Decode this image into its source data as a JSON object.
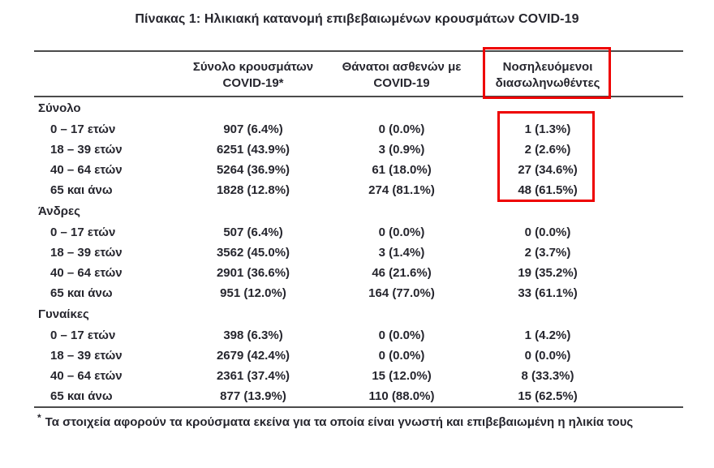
{
  "title": "Πίνακας 1: Ηλικιακή κατανομή επιβεβαιωμένων κρουσμάτων COVID-19",
  "table": {
    "headers": [
      {
        "line1": "Σύνολο κρουσμάτων",
        "line2": "COVID-19*"
      },
      {
        "line1": "Θάνατοι ασθενών με",
        "line2": "COVID-19"
      },
      {
        "line1": "Νοσηλευόμενοι",
        "line2": "διασωληνωθέντες"
      }
    ],
    "sections": [
      {
        "label": "Σύνολο",
        "rows": [
          {
            "age": "0 – 17 ετών",
            "cases": "907 (6.4%)",
            "deaths": "0 (0.0%)",
            "intubated": "1 (1.3%)"
          },
          {
            "age": "18 – 39 ετών",
            "cases": "6251 (43.9%)",
            "deaths": "3 (0.9%)",
            "intubated": "2 (2.6%)"
          },
          {
            "age": "40 – 64 ετών",
            "cases": "5264 (36.9%)",
            "deaths": "61 (18.0%)",
            "intubated": "27 (34.6%)"
          },
          {
            "age": "65 και άνω",
            "cases": "1828 (12.8%)",
            "deaths": "274 (81.1%)",
            "intubated": "48 (61.5%)"
          }
        ]
      },
      {
        "label": "Άνδρες",
        "rows": [
          {
            "age": "0 – 17 ετών",
            "cases": "507 (6.4%)",
            "deaths": "0 (0.0%)",
            "intubated": "0 (0.0%)"
          },
          {
            "age": "18 – 39 ετών",
            "cases": "3562 (45.0%)",
            "deaths": "3 (1.4%)",
            "intubated": "2 (3.7%)"
          },
          {
            "age": "40 – 64 ετών",
            "cases": "2901 (36.6%)",
            "deaths": "46 (21.6%)",
            "intubated": "19 (35.2%)"
          },
          {
            "age": "65 και άνω",
            "cases": "951 (12.0%)",
            "deaths": "164 (77.0%)",
            "intubated": "33 (61.1%)"
          }
        ]
      },
      {
        "label": "Γυναίκες",
        "rows": [
          {
            "age": "0 – 17 ετών",
            "cases": "398 (6.3%)",
            "deaths": "0 (0.0%)",
            "intubated": "1 (4.2%)"
          },
          {
            "age": "18 – 39 ετών",
            "cases": "2679 (42.4%)",
            "deaths": "0 (0.0%)",
            "intubated": "0 (0.0%)"
          },
          {
            "age": "40 – 64 ετών",
            "cases": "2361 (37.4%)",
            "deaths": "15 (12.0%)",
            "intubated": "8 (33.3%)"
          },
          {
            "age": "65 και άνω",
            "cases": "877 (13.9%)",
            "deaths": "110 (88.0%)",
            "intubated": "15 (62.5%)"
          }
        ]
      }
    ]
  },
  "footnote": {
    "marker": "*",
    "text": "Τα στοιχεία αφορούν τα κρούσματα εκείνα για τα οποία είναι γνωστή και επιβεβαιωμένη η ηλικία τους"
  },
  "annotations": {
    "highlight_color": "#ee0000",
    "text_color": "#26262e",
    "rule_color": "#4b4b4b"
  }
}
